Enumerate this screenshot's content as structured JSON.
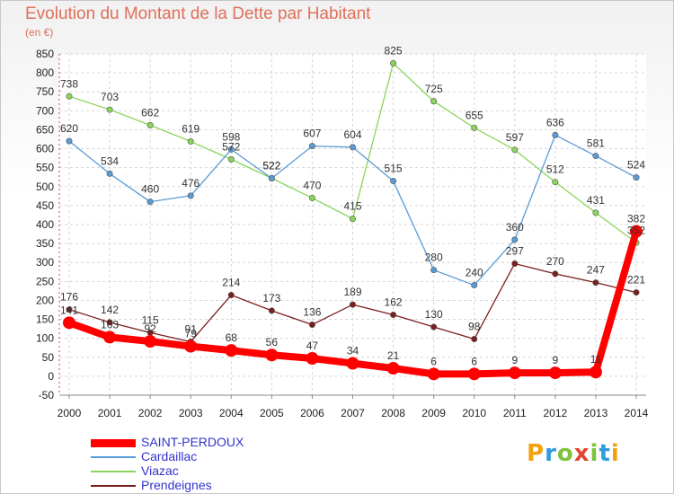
{
  "title": "Evolution du Montant de la Dette par Habitant",
  "unit": "(en €)",
  "logo": {
    "text": "Proxiti",
    "letter_colors": [
      "#f2a20f",
      "#2f9be0",
      "#7dc33c",
      "#e0462f",
      "#7dc33c",
      "#2f9be0",
      "#f2a20f"
    ]
  },
  "chart_data": {
    "type": "line",
    "x": [
      "2000",
      "2001",
      "2002",
      "2003",
      "2004",
      "2005",
      "2006",
      "2007",
      "2008",
      "2009",
      "2010",
      "2011",
      "2012",
      "2013",
      "2014"
    ],
    "ylim": [
      -50,
      850
    ],
    "yticks": [
      -50,
      0,
      50,
      100,
      150,
      200,
      250,
      300,
      350,
      400,
      450,
      500,
      550,
      600,
      650,
      700,
      750,
      800,
      850
    ],
    "grid": true,
    "legend_position": "bottom-left",
    "series": [
      {
        "name": "SAINT-PERDOUX",
        "color": "#ff0000",
        "values": [
          141,
          103,
          92,
          79,
          68,
          56,
          47,
          34,
          21,
          6,
          6,
          9,
          9,
          11,
          382
        ]
      },
      {
        "name": "Cardaillac",
        "color": "#5b9bd5",
        "values": [
          620,
          534,
          460,
          476,
          598,
          522,
          607,
          604,
          515,
          280,
          240,
          360,
          636,
          581,
          524
        ]
      },
      {
        "name": "Viazac",
        "color": "#8bd45a",
        "values": [
          738,
          703,
          662,
          619,
          572,
          522,
          470,
          415,
          825,
          725,
          655,
          597,
          512,
          431,
          352
        ]
      },
      {
        "name": "Prendeignes",
        "color": "#7b1f1f",
        "values": [
          176,
          142,
          115,
          91,
          214,
          173,
          136,
          189,
          162,
          130,
          98,
          297,
          270,
          247,
          221
        ]
      }
    ]
  }
}
